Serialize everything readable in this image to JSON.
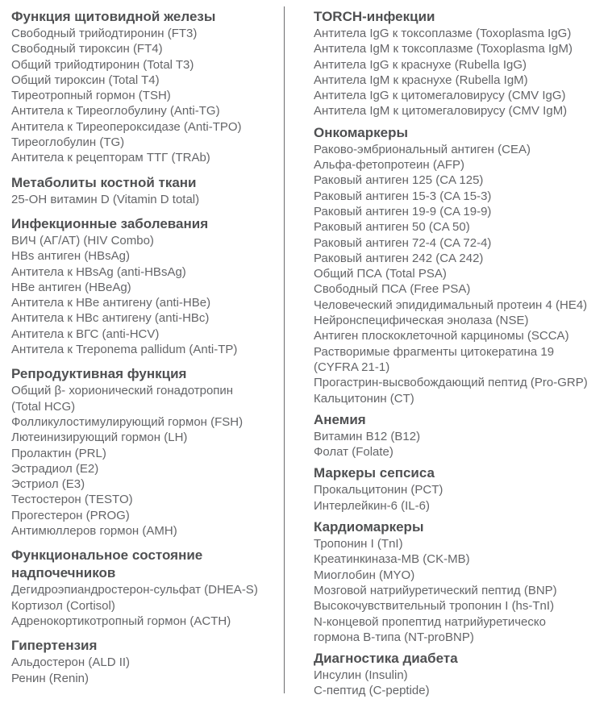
{
  "theme": {
    "background": "#ffffff",
    "heading_color": "#4f5052",
    "item_color": "#646568",
    "divider_color": "#6b6c6e"
  },
  "columns": [
    {
      "name": "left",
      "sections": [
        {
          "title": "Функция щитовидной железы",
          "items": [
            "Свободный трийодтиронин (FT3)",
            "Свободный тироксин (FT4)",
            "Общий трийодтиронин (Total T3)",
            "Общий тироксин (Total T4)",
            "Тиреотропный гормон (TSH)",
            "Антитела к Тиреоглобулину (Anti-TG)",
            "Антитела к Тиреопероксидазе (Anti-TPO)",
            "Тиреоглобулин (TG)",
            "Антитела к рецепторам ТТГ (TRAb)"
          ]
        },
        {
          "title": "Метаболиты костной ткани",
          "items": [
            "25-OH витамин D (Vitamin D total)"
          ]
        },
        {
          "title": "Инфекционные заболевания",
          "items": [
            "ВИЧ (АГ/АТ) (HIV Combo)",
            "HBs антиген (HBsAg)",
            "Антитела к HBsAg (anti-HBsAg)",
            "HBe антиген (HBeAg)",
            "Антитела к HBe антигену (anti-HBe)",
            "Антитела к HBc антигену (anti-HBc)",
            "Антитела к ВГС (anti-HCV)",
            "Антитела к Treponema pallidum (Anti-TP)"
          ]
        },
        {
          "title": "Репродуктивная функция",
          "items": [
            "Общий β- хорионический гонадотропин\n(Total HCG)",
            "Фолликулостимулирующий гормон (FSH)",
            "Лютеинизирующий гормон (LH)",
            "Пролактин (PRL)",
            "Эстрадиол (E2)",
            "Эстриол (E3)",
            "Тестостерон (TESTO)",
            "Прогестерон (PROG)",
            "Антимюллеров гормон (AMH)"
          ]
        },
        {
          "title": "Функциональное состояние\nнадпочечников",
          "items": [
            "Дегидроэпиандростерон-сульфат (DHEA-S)",
            "Кортизол (Cortisol)",
            "Адренокортикотропный гормон (ACTH)"
          ]
        },
        {
          "title": "Гипертензия",
          "items": [
            "Альдостерон (ALD II)",
            "Ренин (Renin)"
          ]
        }
      ]
    },
    {
      "name": "right",
      "sections": [
        {
          "title": "TORCH-инфекции",
          "items": [
            "Антитела IgG к токсоплазме (Toxoplasma IgG)",
            "Антитела IgM к токсоплазме (Toxoplasma IgM)",
            "Антитела IgG к краснухе (Rubella IgG)",
            "Антитела IgM к краснухе (Rubella IgM)",
            "Антитела IgG к цитомегаловирусу (CMV IgG)",
            "Антитела IgM к цитомегаловирусу (CMV IgM)"
          ]
        },
        {
          "title": "Онкомаркеры",
          "items": [
            "Раково-эмбриональный антиген (CEA)",
            "Альфа-фетопротеин (AFP)",
            "Раковый антиген 125 (CA 125)",
            "Раковый антиген 15-3 (CA 15-3)",
            "Раковый антиген 19-9 (CA 19-9)",
            "Раковый антиген 50 (CA 50)",
            "Раковый антиген 72-4 (CA 72-4)",
            "Раковый антиген 242 (CA 242)",
            "Общий ПСА (Total PSA)",
            "Свободный ПСА (Free PSA)",
            "Человеческий эпидидимальный протеин 4 (HE4)",
            "Нейронспецифическая энолаза (NSE)",
            "Антиген плоскоклеточной карциномы (SCCA)",
            "Растворимые фрагменты цитокератина 19\n(CYFRA 21-1)",
            "Прогастрин-высвобождающий пептид (Pro-GRP)",
            "Кальцитонин (CT)"
          ]
        },
        {
          "title": "Анемия",
          "items": [
            "Витамин B12 (B12)",
            "Фолат (Folate)"
          ]
        },
        {
          "title": "Маркеры сепсиса",
          "items": [
            "Прокальцитонин (PCT)",
            "Интерлейкин-6 (IL-6)"
          ]
        },
        {
          "title": "Кардиомаркеры",
          "items": [
            "Тропонин I (TnI)",
            "Креатинкиназа-MB (CK-MB)",
            "Миоглобин (MYO)",
            "Мозговой натрийуретический пептид (BNP)",
            "Высокочувствительный тропонин I (hs-TnI)",
            "N-концевой пропептид натрийуретическо\nгормона B-типа (NT-proBNP)"
          ]
        },
        {
          "title": "Диагностика диабета",
          "items": [
            "Инсулин (Insulin)",
            "C-пептид (C-peptide)"
          ]
        }
      ]
    }
  ]
}
